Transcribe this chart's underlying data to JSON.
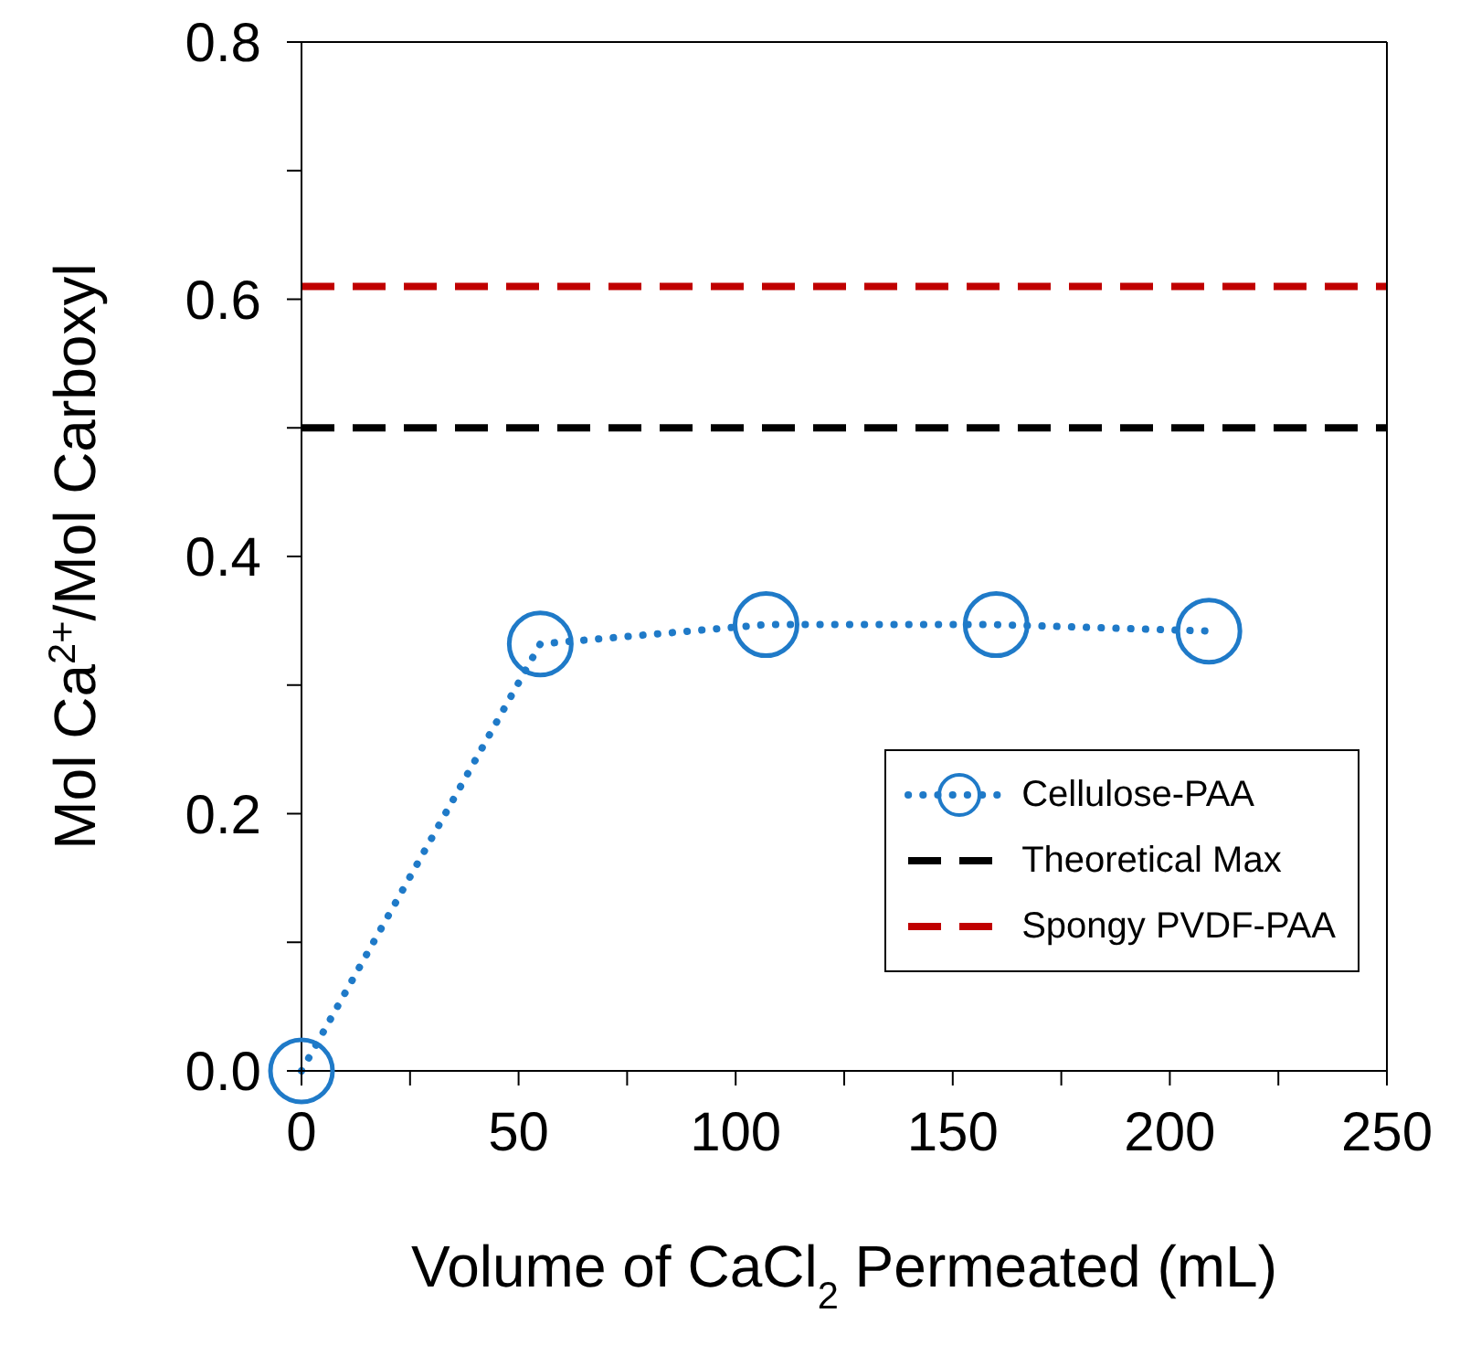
{
  "chart_data": {
    "type": "line",
    "xlabel": "Volume of CaCl$_{2}$ Permeated (mL)",
    "ylabel": "Mol Ca$^{2+}$/Mol Carboxyl",
    "xlim": [
      0,
      250
    ],
    "ylim": [
      0,
      0.8
    ],
    "xticks": [
      0,
      {
        "value": 25,
        "label": null
      },
      50,
      {
        "value": 75,
        "label": null
      },
      100,
      {
        "value": 125,
        "label": null
      },
      150,
      {
        "value": 175,
        "label": null
      },
      200,
      {
        "value": 225,
        "label": null
      },
      250
    ],
    "yticks": [
      {
        "value": 0,
        "label": "0.0"
      },
      {
        "value": 0.1,
        "label": null
      },
      0.2,
      {
        "value": 0.3,
        "label": null
      },
      0.4,
      {
        "value": 0.5,
        "label": null
      },
      0.6,
      {
        "value": 0.7,
        "label": null
      },
      0.8
    ],
    "legend": "bottom right",
    "series": [
      {
        "name": "Cellulose-PAA",
        "color": "#1f7ac8",
        "x": [
          0,
          55,
          107,
          160,
          209
        ],
        "values": [
          0,
          0.332,
          0.347,
          0.347,
          0.342
        ],
        "marker": "circle",
        "line_style": "dotted"
      },
      {
        "name": "Theoretical Max",
        "color": "#000000",
        "x": [
          0,
          250
        ],
        "values": [
          0.5,
          0.5
        ],
        "marker": "none",
        "line_style": "dashed"
      },
      {
        "name": "Spongy PVDF-PAA",
        "color": "#c00000",
        "x": [
          0,
          250
        ],
        "values": [
          0.61,
          0.61
        ],
        "marker": "none",
        "line_style": "dashed"
      }
    ]
  }
}
